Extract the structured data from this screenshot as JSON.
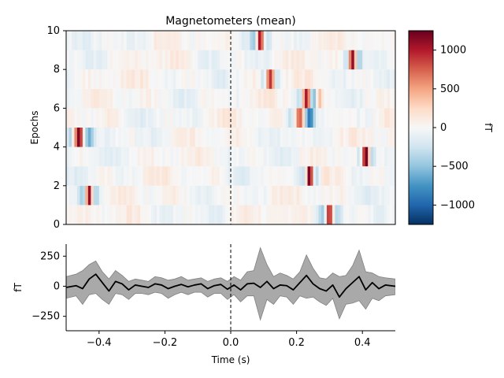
{
  "chart_data": [
    {
      "type": "heatmap",
      "title": "Magnetometers (mean)",
      "xlabel": "",
      "ylabel": "Epochs",
      "xlim": [
        -0.5,
        0.5
      ],
      "ylim": [
        0,
        10
      ],
      "yticks": [
        0,
        2,
        4,
        6,
        8,
        10
      ],
      "colorbar": {
        "label": "fT",
        "range": [
          -1250,
          1250
        ],
        "ticks": [
          -1000,
          -500,
          0,
          500,
          1000
        ],
        "colormap": "RdBu_r"
      },
      "event_marker_x": 0,
      "rows": [
        {
          "epoch": 0,
          "peaks": [
            {
              "t": 0.3,
              "v": 1200,
              "w": 0.012
            },
            {
              "t": 0.28,
              "v": -400,
              "w": 0.015
            },
            {
              "t": 0.32,
              "v": -300,
              "w": 0.015
            }
          ]
        },
        {
          "epoch": 1,
          "peaks": [
            {
              "t": -0.43,
              "v": 1200,
              "w": 0.01
            },
            {
              "t": -0.45,
              "v": -350,
              "w": 0.012
            },
            {
              "t": -0.41,
              "v": -300,
              "w": 0.012
            }
          ]
        },
        {
          "epoch": 2,
          "peaks": [
            {
              "t": 0.24,
              "v": 1250,
              "w": 0.01
            },
            {
              "t": 0.22,
              "v": -300,
              "w": 0.012
            },
            {
              "t": 0.26,
              "v": -400,
              "w": 0.012
            }
          ]
        },
        {
          "epoch": 3,
          "peaks": [
            {
              "t": 0.41,
              "v": 1200,
              "w": 0.01
            },
            {
              "t": 0.39,
              "v": -300,
              "w": 0.012
            },
            {
              "t": 0.43,
              "v": -400,
              "w": 0.012
            }
          ]
        },
        {
          "epoch": 4,
          "peaks": [
            {
              "t": -0.46,
              "v": 1100,
              "w": 0.012
            },
            {
              "t": -0.43,
              "v": -600,
              "w": 0.015
            },
            {
              "t": -0.49,
              "v": -500,
              "w": 0.01
            }
          ]
        },
        {
          "epoch": 5,
          "peaks": [
            {
              "t": 0.21,
              "v": 900,
              "w": 0.012
            },
            {
              "t": 0.24,
              "v": -800,
              "w": 0.012
            },
            {
              "t": 0.18,
              "v": -300,
              "w": 0.012
            }
          ]
        },
        {
          "epoch": 6,
          "peaks": [
            {
              "t": 0.23,
              "v": 1100,
              "w": 0.012
            },
            {
              "t": 0.25,
              "v": -600,
              "w": 0.012
            },
            {
              "t": 0.27,
              "v": 400,
              "w": 0.01
            },
            {
              "t": 0.21,
              "v": -300,
              "w": 0.012
            }
          ]
        },
        {
          "epoch": 7,
          "peaks": [
            {
              "t": 0.12,
              "v": 1000,
              "w": 0.012
            },
            {
              "t": 0.1,
              "v": -300,
              "w": 0.012
            },
            {
              "t": 0.14,
              "v": -300,
              "w": 0.012
            }
          ]
        },
        {
          "epoch": 8,
          "peaks": [
            {
              "t": 0.37,
              "v": 1150,
              "w": 0.01
            },
            {
              "t": 0.35,
              "v": -400,
              "w": 0.012
            },
            {
              "t": 0.39,
              "v": -400,
              "w": 0.012
            }
          ]
        },
        {
          "epoch": 9,
          "peaks": [
            {
              "t": 0.09,
              "v": 1200,
              "w": 0.01
            },
            {
              "t": 0.07,
              "v": -300,
              "w": 0.012
            },
            {
              "t": 0.11,
              "v": -300,
              "w": 0.012
            }
          ]
        }
      ]
    },
    {
      "type": "line",
      "xlabel": "Time (s)",
      "ylabel": "fT",
      "xlim": [
        -0.5,
        0.5
      ],
      "ylim": [
        -370,
        350
      ],
      "xticks": [
        -0.4,
        -0.2,
        0.0,
        0.2,
        0.4
      ],
      "yticks": [
        -250,
        0,
        250
      ],
      "series": [
        {
          "kind": "mean",
          "color": "#000000",
          "x": [
            -0.5,
            -0.47,
            -0.45,
            -0.43,
            -0.41,
            -0.39,
            -0.37,
            -0.35,
            -0.33,
            -0.31,
            -0.29,
            -0.27,
            -0.25,
            -0.23,
            -0.21,
            -0.19,
            -0.17,
            -0.15,
            -0.13,
            -0.11,
            -0.09,
            -0.07,
            -0.05,
            -0.03,
            -0.01,
            0.01,
            0.03,
            0.05,
            0.07,
            0.09,
            0.11,
            0.13,
            0.15,
            0.17,
            0.19,
            0.21,
            0.23,
            0.25,
            0.27,
            0.29,
            0.31,
            0.33,
            0.35,
            0.37,
            0.39,
            0.41,
            0.43,
            0.45,
            0.47,
            0.5
          ],
          "y": [
            -10,
            5,
            -20,
            60,
            100,
            30,
            -40,
            40,
            20,
            -30,
            10,
            0,
            -10,
            20,
            10,
            -20,
            0,
            15,
            -5,
            10,
            20,
            -20,
            5,
            15,
            -25,
            10,
            -30,
            20,
            25,
            -10,
            40,
            -20,
            10,
            5,
            -30,
            30,
            90,
            20,
            -20,
            -40,
            10,
            -90,
            -20,
            30,
            80,
            -30,
            30,
            -20,
            10,
            0
          ]
        },
        {
          "kind": "band",
          "color": "#a9a9a9",
          "x": [
            -0.5,
            -0.47,
            -0.45,
            -0.43,
            -0.41,
            -0.39,
            -0.37,
            -0.35,
            -0.33,
            -0.31,
            -0.29,
            -0.27,
            -0.25,
            -0.23,
            -0.21,
            -0.19,
            -0.17,
            -0.15,
            -0.13,
            -0.11,
            -0.09,
            -0.07,
            -0.05,
            -0.03,
            -0.01,
            0.01,
            0.03,
            0.05,
            0.07,
            0.09,
            0.11,
            0.13,
            0.15,
            0.17,
            0.19,
            0.21,
            0.23,
            0.25,
            0.27,
            0.29,
            0.31,
            0.33,
            0.35,
            0.37,
            0.39,
            0.41,
            0.43,
            0.45,
            0.47,
            0.5
          ],
          "upper": [
            80,
            100,
            130,
            180,
            210,
            120,
            60,
            130,
            90,
            40,
            60,
            50,
            40,
            80,
            70,
            50,
            60,
            80,
            50,
            60,
            70,
            40,
            60,
            70,
            40,
            80,
            50,
            120,
            130,
            320,
            180,
            80,
            110,
            90,
            60,
            120,
            260,
            150,
            70,
            60,
            110,
            80,
            90,
            170,
            300,
            120,
            110,
            80,
            70,
            60
          ],
          "lower": [
            -100,
            -80,
            -150,
            -70,
            -60,
            -110,
            -150,
            -60,
            -70,
            -110,
            -60,
            -60,
            -70,
            -50,
            -60,
            -100,
            -70,
            -50,
            -70,
            -50,
            -50,
            -90,
            -60,
            -60,
            -110,
            -70,
            -130,
            -80,
            -80,
            -280,
            -110,
            -150,
            -80,
            -90,
            -150,
            -80,
            -100,
            -90,
            -130,
            -160,
            -100,
            -270,
            -150,
            -140,
            -120,
            -190,
            -100,
            -120,
            -80,
            -70
          ]
        }
      ],
      "event_marker_x": 0
    }
  ]
}
